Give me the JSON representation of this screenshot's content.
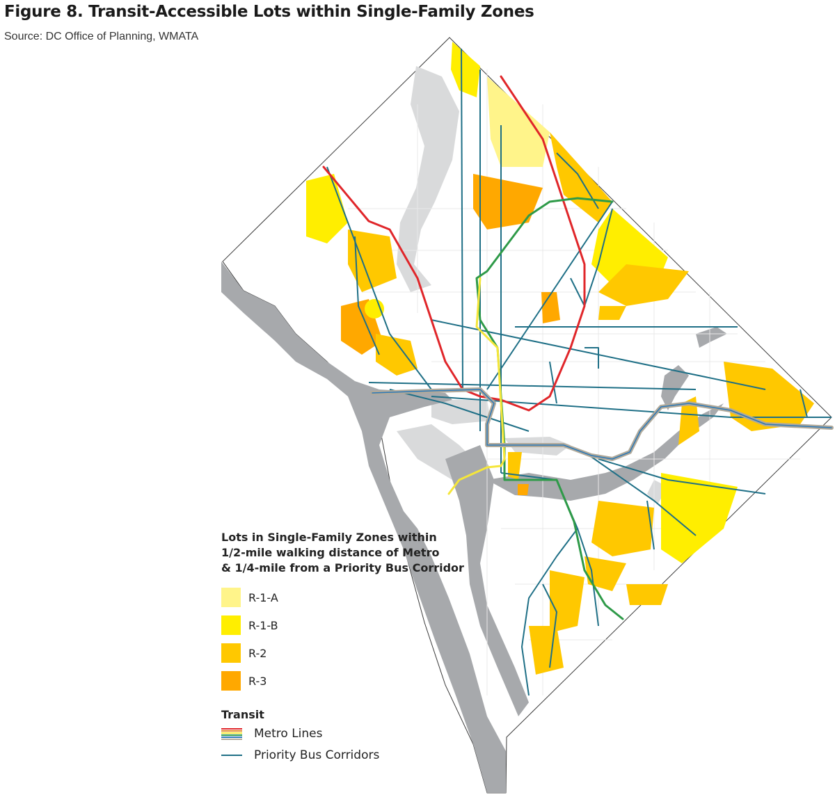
{
  "figure": {
    "title": "Figure 8. Transit-Accessible Lots within Single-Family Zones",
    "source": "Source: DC Office of Planning, WMATA"
  },
  "legend": {
    "heading_lines": [
      "Lots in Single-Family Zones within",
      "1/2-mile walking distance of Metro",
      "& 1/4-mile from a Priority Bus Corridor"
    ],
    "zones": [
      {
        "label": "R-1-A",
        "color": "#fff48a"
      },
      {
        "label": "R-1-B",
        "color": "#ffee00"
      },
      {
        "label": "R-2",
        "color": "#ffc800"
      },
      {
        "label": "R-3",
        "color": "#ffa800"
      }
    ],
    "transit_heading": "Transit",
    "metro_label": "Metro Lines",
    "bus_label": "Priority Bus Corridors"
  },
  "colors": {
    "water": "#a7a9ac",
    "parks": "#d9dadb",
    "boundary": "#3a3a3a",
    "bus": "#1e6f86",
    "metro_red": "#e0262a",
    "metro_green": "#2e9a48",
    "metro_yellow": "#f5e63a",
    "metro_orange": "#e08a2a",
    "metro_blue": "#2a78b8",
    "metro_silver": "#b0a99a"
  }
}
